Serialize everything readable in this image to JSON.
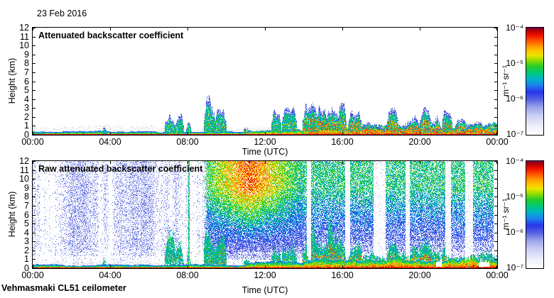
{
  "header": {
    "date_label": "23 Feb 2016"
  },
  "footer": {
    "instrument_label": "Vehmasmaki CL51 ceilometer"
  },
  "colormap": {
    "description": "jet-style colormap fading to white at the low end",
    "stops": [
      [
        0.0,
        "#ffffff"
      ],
      [
        0.08,
        "#eef0fa"
      ],
      [
        0.18,
        "#c9cef2"
      ],
      [
        0.26,
        "#9aa4ea"
      ],
      [
        0.33,
        "#5761e2"
      ],
      [
        0.4,
        "#2736e8"
      ],
      [
        0.46,
        "#1f7df0"
      ],
      [
        0.52,
        "#00b4c8"
      ],
      [
        0.58,
        "#00c878"
      ],
      [
        0.64,
        "#28cc28"
      ],
      [
        0.7,
        "#a0dc00"
      ],
      [
        0.74,
        "#e6e600"
      ],
      [
        0.78,
        "#ffc800"
      ],
      [
        0.83,
        "#ff9600"
      ],
      [
        0.88,
        "#ff5000"
      ],
      [
        0.93,
        "#ee1000"
      ],
      [
        0.97,
        "#b40000"
      ],
      [
        1.0,
        "#780048"
      ]
    ]
  },
  "chart_data": [
    {
      "type": "heatmap",
      "title": "Attenuated backscatter coefficient",
      "xlabel": "Time (UTC)",
      "ylabel": "Height (km)",
      "xlim_hours": [
        0,
        24
      ],
      "ylim_km": [
        0,
        12
      ],
      "x_tick_hours": [
        0,
        4,
        8,
        12,
        16,
        20,
        24
      ],
      "x_tick_labels": [
        "00:00",
        "04:00",
        "08:00",
        "12:00",
        "16:00",
        "20:00",
        "00:00"
      ],
      "y_tick_values": [
        0,
        1,
        2,
        3,
        4,
        5,
        6,
        7,
        8,
        9,
        10,
        11,
        12
      ],
      "grid": false,
      "colorbar": {
        "labels": [
          "10⁻⁴",
          "10⁻⁵",
          "10⁻⁶",
          "10⁻⁷"
        ],
        "unit": "m⁻¹ sr⁻¹",
        "scale": "log10",
        "max": "1e-4",
        "min": "1e-7"
      },
      "features": {
        "surface_layer": [
          [
            0,
            4,
            0.3,
            0.55
          ],
          [
            4,
            8,
            0.26,
            0.52
          ],
          [
            8,
            11,
            0.32,
            0.62
          ],
          [
            11,
            14,
            0.5,
            0.78
          ],
          [
            14,
            17,
            0.72,
            0.88
          ],
          [
            17,
            20,
            0.95,
            0.92
          ],
          [
            20,
            22,
            0.85,
            0.9
          ],
          [
            22,
            24,
            1.05,
            0.95
          ]
        ],
        "gray_speckle_until_hour": 13.5,
        "gray_band_extra_km": 0.5,
        "clouds": [
          [
            3.6,
            3.78,
            0.8,
            0.1,
            0.0
          ],
          [
            6.85,
            7.35,
            2.9,
            0.2,
            0.05
          ],
          [
            7.35,
            7.75,
            2.3,
            0.2,
            0.05
          ],
          [
            7.95,
            8.15,
            1.6,
            0.2,
            0.0
          ],
          [
            8.85,
            9.45,
            4.3,
            0.3,
            0.1
          ],
          [
            9.45,
            9.95,
            3.3,
            0.3,
            0.1
          ],
          [
            10.9,
            11.2,
            1.0,
            0.15,
            0.2
          ],
          [
            12.35,
            12.8,
            2.6,
            0.3,
            0.08
          ],
          [
            12.9,
            13.6,
            3.0,
            0.3,
            0.12
          ],
          [
            13.95,
            14.7,
            3.6,
            0.35,
            0.3
          ],
          [
            14.7,
            15.2,
            4.2,
            0.45,
            0.45
          ],
          [
            15.2,
            15.75,
            5.2,
            0.5,
            0.4
          ],
          [
            15.75,
            16.15,
            3.4,
            0.4,
            0.4
          ],
          [
            16.3,
            16.95,
            2.7,
            0.25,
            0.55
          ],
          [
            17.0,
            18.15,
            1.9,
            0.12,
            0.75
          ],
          [
            18.3,
            18.85,
            2.7,
            0.2,
            0.45
          ],
          [
            18.9,
            19.9,
            2.2,
            0.12,
            0.7
          ],
          [
            19.9,
            20.6,
            2.9,
            0.2,
            0.5
          ],
          [
            20.6,
            21.05,
            2.2,
            0.12,
            0.65
          ],
          [
            21.15,
            21.65,
            2.6,
            0.2,
            0.3
          ],
          [
            21.8,
            22.4,
            1.6,
            0.12,
            0.55
          ],
          [
            22.4,
            24.0,
            1.3,
            0.08,
            0.75
          ]
        ]
      }
    },
    {
      "type": "heatmap",
      "title": "Raw attenuated backscatter coefficient",
      "xlabel": "Time (UTC)",
      "ylabel": "Height (km)",
      "xlim_hours": [
        0,
        24
      ],
      "ylim_km": [
        0,
        12
      ],
      "x_tick_hours": [
        0,
        4,
        8,
        12,
        16,
        20,
        24
      ],
      "x_tick_labels": [
        "00:00",
        "04:00",
        "08:00",
        "12:00",
        "16:00",
        "20:00",
        "00:00"
      ],
      "y_tick_values": [
        0,
        1,
        2,
        3,
        4,
        5,
        6,
        7,
        8,
        9,
        10,
        11,
        12
      ],
      "grid": false,
      "colorbar": {
        "labels": [
          "10⁻⁴",
          "10⁻⁵",
          "10⁻⁶",
          "10⁻⁷"
        ],
        "unit": "m⁻¹ sr⁻¹",
        "scale": "log10",
        "max": "1e-4",
        "min": "1e-7"
      },
      "features": {
        "surface_layer": [
          [
            0,
            4,
            0.3,
            0.55
          ],
          [
            4,
            8,
            0.26,
            0.52
          ],
          [
            8,
            11,
            0.32,
            0.62
          ],
          [
            11,
            14,
            0.5,
            0.78
          ],
          [
            14,
            17,
            0.72,
            0.88
          ],
          [
            17,
            20,
            0.95,
            0.92
          ],
          [
            20,
            22,
            0.85,
            0.9
          ],
          [
            22,
            24,
            1.05,
            0.95
          ]
        ],
        "gray_speckle_until_hour": 8.6,
        "gray_band_extra_km": 0.35,
        "clouds": [
          [
            3.6,
            3.78,
            0.8,
            0.1,
            0.0
          ],
          [
            6.85,
            7.35,
            2.9,
            0.2,
            0.05
          ],
          [
            7.35,
            7.75,
            2.3,
            0.2,
            0.05
          ],
          [
            7.95,
            8.15,
            1.6,
            0.2,
            0.0
          ],
          [
            8.85,
            9.45,
            4.3,
            0.3,
            0.1
          ],
          [
            9.45,
            9.95,
            3.3,
            0.3,
            0.1
          ],
          [
            10.9,
            11.2,
            1.0,
            0.15,
            0.2
          ],
          [
            12.35,
            12.8,
            2.6,
            0.3,
            0.08
          ],
          [
            12.9,
            13.6,
            3.0,
            0.3,
            0.12
          ],
          [
            13.95,
            14.7,
            3.6,
            0.35,
            0.3
          ],
          [
            14.7,
            15.2,
            4.2,
            0.45,
            0.45
          ],
          [
            15.2,
            15.75,
            5.2,
            0.5,
            0.4
          ],
          [
            15.75,
            16.15,
            3.4,
            0.4,
            0.4
          ],
          [
            16.3,
            16.95,
            2.7,
            0.25,
            0.55
          ],
          [
            17.0,
            18.15,
            1.9,
            0.12,
            0.75
          ],
          [
            18.3,
            18.85,
            2.7,
            0.2,
            0.45
          ],
          [
            18.9,
            19.9,
            2.2,
            0.12,
            0.7
          ],
          [
            19.9,
            20.6,
            2.9,
            0.2,
            0.5
          ],
          [
            20.6,
            21.05,
            2.2,
            0.12,
            0.65
          ],
          [
            21.15,
            21.65,
            2.6,
            0.2,
            0.3
          ],
          [
            21.8,
            22.4,
            1.6,
            0.12,
            0.55
          ],
          [
            22.4,
            24.0,
            1.3,
            0.08,
            0.75
          ]
        ],
        "noise": {
          "day_start_hour": 8.75,
          "day_ramp_hours": 0.3,
          "heat_peak_hour": 11.2,
          "heat_half_width_hours": 2.6,
          "bright_green_column_hour": 8.05,
          "attenuation_columns": [
            [
              14.18,
              14.34
            ],
            [
              16.15,
              16.35
            ],
            [
              17.62,
              18.2
            ],
            [
              19.3,
              19.44
            ],
            [
              21.33,
              21.57
            ],
            [
              22.38,
              22.68
            ],
            [
              23.82,
              24.0
            ]
          ],
          "white_blobs": [
            [
              20.85,
              21.1,
              0.9
            ],
            [
              23.05,
              23.55,
              0.95
            ]
          ]
        }
      }
    }
  ]
}
